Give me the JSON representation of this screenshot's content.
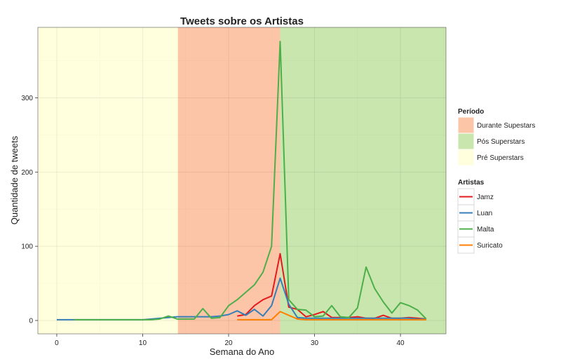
{
  "chart_data": {
    "type": "line",
    "title": "Tweets sobre os Artistas",
    "xlabel": "Semana do Ano",
    "ylabel": "Quantidade de tweets",
    "xlim": [
      -2.2,
      45.3
    ],
    "ylim": [
      -18,
      395
    ],
    "x_ticks": [
      0,
      10,
      20,
      30,
      40
    ],
    "y_ticks": [
      0,
      100,
      200,
      300
    ],
    "grid": true,
    "legend_position": "right",
    "periods_legend_title": "Período",
    "periods": [
      {
        "name": "Pré Superstars",
        "x_start": -2.2,
        "x_end": 14.1,
        "color": "#FFFFDD"
      },
      {
        "name": "Durante Supestars",
        "x_start": 14.1,
        "x_end": 26.0,
        "color": "#FCC5A8"
      },
      {
        "name": "Pós Superstars",
        "x_start": 26.0,
        "x_end": 45.3,
        "color": "#C9E6AE"
      }
    ],
    "periods_legend_order": [
      "Durante Supestars",
      "Pós Superstars",
      "Pré Superstars"
    ],
    "series_legend_title": "Artistas",
    "series": [
      {
        "name": "Jamz",
        "color": "#E41A1C",
        "points": [
          [
            21,
            6
          ],
          [
            22,
            8
          ],
          [
            23,
            20
          ],
          [
            24,
            28
          ],
          [
            25,
            33
          ],
          [
            26,
            90
          ],
          [
            27,
            18
          ],
          [
            28,
            15
          ],
          [
            29,
            5
          ],
          [
            30,
            8
          ],
          [
            31,
            12
          ],
          [
            32,
            4
          ],
          [
            33,
            4
          ],
          [
            34,
            4
          ],
          [
            35,
            5
          ],
          [
            36,
            3
          ],
          [
            37,
            3
          ],
          [
            38,
            7
          ],
          [
            39,
            3
          ],
          [
            40,
            3
          ],
          [
            41,
            4
          ],
          [
            42,
            3
          ],
          [
            43,
            2
          ]
        ]
      },
      {
        "name": "Luan",
        "color": "#377EB8",
        "points": [
          [
            0,
            1
          ],
          [
            1,
            1
          ],
          [
            2,
            1
          ],
          [
            3,
            1
          ],
          [
            4,
            1
          ],
          [
            5,
            1
          ],
          [
            6,
            1
          ],
          [
            7,
            1
          ],
          [
            8,
            1
          ],
          [
            9,
            1
          ],
          [
            10,
            1
          ],
          [
            11,
            2
          ],
          [
            12,
            3
          ],
          [
            13,
            4
          ],
          [
            14,
            5
          ],
          [
            15,
            5
          ],
          [
            16,
            5
          ],
          [
            17,
            5
          ],
          [
            18,
            5
          ],
          [
            19,
            6
          ],
          [
            20,
            8
          ],
          [
            21,
            13
          ],
          [
            22,
            7
          ],
          [
            23,
            15
          ],
          [
            24,
            6
          ],
          [
            25,
            20
          ],
          [
            26,
            57
          ],
          [
            27,
            22
          ],
          [
            28,
            4
          ],
          [
            29,
            3
          ],
          [
            30,
            3
          ],
          [
            31,
            3
          ],
          [
            32,
            3
          ],
          [
            33,
            3
          ],
          [
            34,
            3
          ],
          [
            35,
            3
          ],
          [
            36,
            3
          ],
          [
            37,
            3
          ],
          [
            38,
            3
          ],
          [
            39,
            3
          ],
          [
            40,
            3
          ],
          [
            41,
            3
          ],
          [
            42,
            2
          ],
          [
            43,
            2
          ]
        ]
      },
      {
        "name": "Malta",
        "color": "#4DAF4A",
        "points": [
          [
            2,
            1
          ],
          [
            3,
            1
          ],
          [
            4,
            1
          ],
          [
            5,
            1
          ],
          [
            6,
            1
          ],
          [
            7,
            1
          ],
          [
            8,
            1
          ],
          [
            9,
            1
          ],
          [
            10,
            1
          ],
          [
            11,
            1
          ],
          [
            12,
            2
          ],
          [
            13,
            6
          ],
          [
            14,
            2
          ],
          [
            15,
            2
          ],
          [
            16,
            2
          ],
          [
            17,
            16
          ],
          [
            18,
            3
          ],
          [
            19,
            4
          ],
          [
            20,
            20
          ],
          [
            21,
            28
          ],
          [
            22,
            38
          ],
          [
            23,
            48
          ],
          [
            24,
            65
          ],
          [
            25,
            100
          ],
          [
            26,
            376
          ],
          [
            27,
            28
          ],
          [
            28,
            15
          ],
          [
            29,
            14
          ],
          [
            30,
            5
          ],
          [
            31,
            6
          ],
          [
            32,
            20
          ],
          [
            33,
            5
          ],
          [
            34,
            4
          ],
          [
            35,
            17
          ],
          [
            36,
            72
          ],
          [
            37,
            43
          ],
          [
            38,
            25
          ],
          [
            39,
            10
          ],
          [
            40,
            24
          ],
          [
            41,
            20
          ],
          [
            42,
            14
          ],
          [
            43,
            2
          ]
        ]
      },
      {
        "name": "Suricato",
        "color": "#FF7F00",
        "points": [
          [
            21,
            1
          ],
          [
            22,
            1
          ],
          [
            23,
            1
          ],
          [
            24,
            1
          ],
          [
            25,
            1
          ],
          [
            26,
            12
          ],
          [
            27,
            7
          ],
          [
            28,
            2
          ],
          [
            29,
            1
          ],
          [
            30,
            1
          ],
          [
            31,
            1
          ],
          [
            32,
            1
          ],
          [
            33,
            1
          ],
          [
            34,
            1
          ],
          [
            35,
            1
          ],
          [
            36,
            1
          ],
          [
            37,
            1
          ],
          [
            38,
            1
          ],
          [
            39,
            1
          ],
          [
            40,
            1
          ],
          [
            41,
            1
          ],
          [
            42,
            1
          ],
          [
            43,
            1
          ]
        ]
      }
    ]
  }
}
